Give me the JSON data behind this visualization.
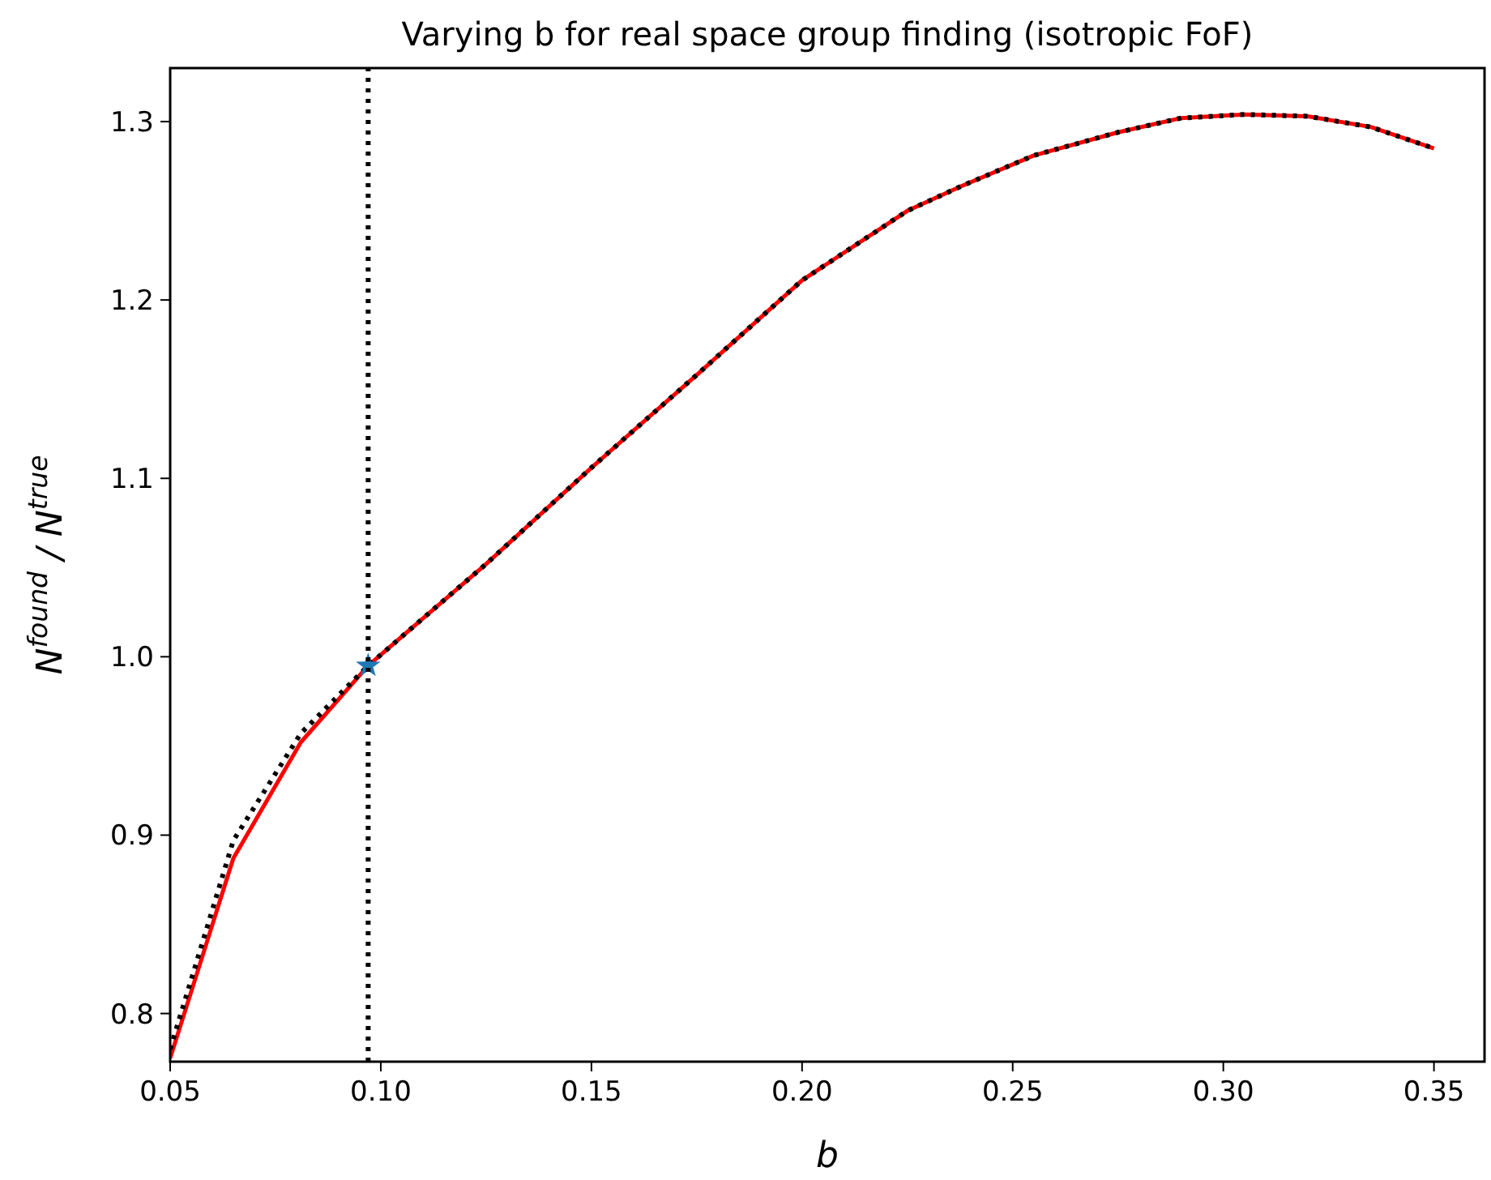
{
  "chart_data": {
    "type": "line",
    "title": "Varying b for real space group finding (isotropic FoF)",
    "xlabel": "b",
    "ylabel": "N$^{found}$ / N$^{true}$",
    "xlim": [
      0.05,
      0.362
    ],
    "ylim": [
      0.773,
      1.33
    ],
    "xticks": [
      {
        "value": 0.05,
        "label": "0.05"
      },
      {
        "value": 0.1,
        "label": "0.10"
      },
      {
        "value": 0.15,
        "label": "0.15"
      },
      {
        "value": 0.2,
        "label": "0.20"
      },
      {
        "value": 0.25,
        "label": "0.25"
      },
      {
        "value": 0.3,
        "label": "0.30"
      },
      {
        "value": 0.35,
        "label": "0.35"
      }
    ],
    "yticks": [
      0.8,
      0.9,
      {
        "value": 1.0,
        "label": "1.0"
      },
      1.1,
      1.2,
      1.3
    ],
    "grid": false,
    "series": [
      {
        "color": "#ff0000",
        "line_style": "solid",
        "x": [
          0.05,
          0.065,
          0.081,
          0.097,
          0.125,
          0.15,
          0.175,
          0.2,
          0.225,
          0.238,
          0.255,
          0.275,
          0.29,
          0.305,
          0.32,
          0.335,
          0.35
        ],
        "values": [
          0.775,
          0.887,
          0.952,
          0.995,
          1.052,
          1.106,
          1.158,
          1.211,
          1.25,
          1.264,
          1.281,
          1.294,
          1.302,
          1.304,
          1.303,
          1.297,
          1.285
        ]
      },
      {
        "color": "#000000",
        "line_style": "dotted",
        "x": [
          0.05,
          0.065,
          0.081,
          0.097,
          0.125,
          0.15,
          0.175,
          0.2,
          0.225,
          0.238,
          0.255,
          0.275,
          0.29,
          0.305,
          0.32,
          0.335,
          0.35
        ],
        "values": [
          0.78,
          0.897,
          0.957,
          0.995,
          1.052,
          1.106,
          1.158,
          1.211,
          1.25,
          1.264,
          1.281,
          1.294,
          1.302,
          1.304,
          1.303,
          1.297,
          1.285
        ]
      },
      {
        "type": "scatter",
        "color": "#1f77b4",
        "marker": "star",
        "x": [
          0.097
        ],
        "values": [
          0.995
        ]
      }
    ],
    "ref_lines": [
      {
        "axis": "x",
        "value": 0.097,
        "color": "#000000",
        "line_style": "dotted"
      }
    ]
  }
}
